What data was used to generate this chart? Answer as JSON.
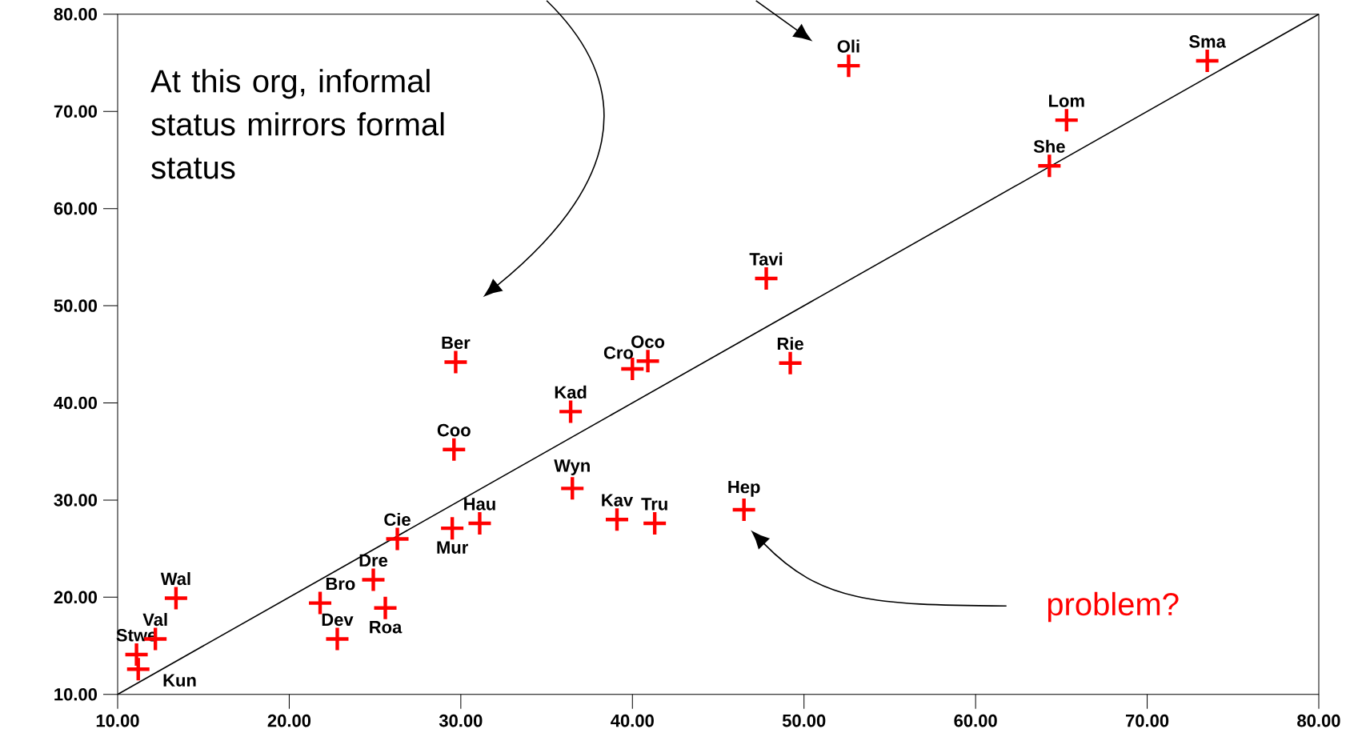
{
  "chart_data": {
    "type": "scatter",
    "xlim": [
      10,
      80
    ],
    "ylim": [
      10,
      80
    ],
    "xticks": [
      {
        "value": 10,
        "label": "10.00"
      },
      {
        "value": 20,
        "label": "20.00"
      },
      {
        "value": 30,
        "label": "30.00"
      },
      {
        "value": 40,
        "label": "40.00"
      },
      {
        "value": 50,
        "label": "50.00"
      },
      {
        "value": 60,
        "label": "60.00"
      },
      {
        "value": 70,
        "label": "70.00"
      },
      {
        "value": 80,
        "label": "80.00"
      }
    ],
    "yticks": [
      {
        "value": 10,
        "label": "10.00"
      },
      {
        "value": 20,
        "label": "20.00"
      },
      {
        "value": 30,
        "label": "30.00"
      },
      {
        "value": 40,
        "label": "40.00"
      },
      {
        "value": 50,
        "label": "50.00"
      },
      {
        "value": 60,
        "label": "60.00"
      },
      {
        "value": 70,
        "label": "70.00"
      },
      {
        "value": 80,
        "label": "80.00"
      }
    ],
    "grid": false,
    "series": [
      {
        "marker": "cross",
        "color": "#ff0000",
        "x": [
          11.1,
          11.2,
          12.2,
          13.4,
          21.8,
          22.8,
          24.9,
          25.6,
          26.3,
          29.5,
          31.1,
          29.7,
          29.6,
          36.4,
          36.5,
          39.1,
          41.3,
          40.0,
          40.9,
          46.5,
          47.8,
          49.2,
          52.6,
          64.3,
          65.3,
          73.5
        ],
        "values": [
          14.1,
          12.6,
          15.7,
          19.9,
          19.4,
          15.7,
          21.8,
          18.9,
          26.0,
          27.1,
          27.6,
          44.2,
          35.2,
          39.1,
          31.2,
          28.0,
          27.6,
          43.5,
          44.3,
          29.0,
          52.8,
          44.1,
          74.7,
          64.4,
          69.1,
          75.2
        ]
      },
      {
        "type": "line",
        "marker": "none",
        "line_style": "solid",
        "color": "#000000",
        "x": [
          10,
          80
        ],
        "values": [
          10,
          80
        ]
      }
    ],
    "annotations": [
      "At this org, informal status mirrors formal status",
      "problem?",
      {
        "text": "Stwe",
        "x": 11.1,
        "y": 14.1
      },
      {
        "text": "Kun",
        "x": 11.2,
        "y": 12.6
      },
      {
        "text": "Val",
        "x": 12.2,
        "y": 15.7
      },
      {
        "text": "Wal",
        "x": 13.4,
        "y": 19.9
      },
      {
        "text": "Bro",
        "x": 21.8,
        "y": 19.4
      },
      {
        "text": "Dev",
        "x": 22.8,
        "y": 15.7
      },
      {
        "text": "Dre",
        "x": 24.9,
        "y": 21.8
      },
      {
        "text": "Roa",
        "x": 25.6,
        "y": 18.9
      },
      {
        "text": "Cie",
        "x": 26.3,
        "y": 26.0
      },
      {
        "text": "Mur",
        "x": 29.5,
        "y": 27.1
      },
      {
        "text": "Hau",
        "x": 31.1,
        "y": 27.6
      },
      {
        "text": "Ber",
        "x": 29.7,
        "y": 44.2
      },
      {
        "text": "Coo",
        "x": 29.6,
        "y": 35.2
      },
      {
        "text": "Kad",
        "x": 36.4,
        "y": 39.1
      },
      {
        "text": "Wyn",
        "x": 36.5,
        "y": 31.2
      },
      {
        "text": "Kav",
        "x": 39.1,
        "y": 28.0
      },
      {
        "text": "Tru",
        "x": 41.3,
        "y": 27.6
      },
      {
        "text": "Cro",
        "x": 40.0,
        "y": 43.5
      },
      {
        "text": "Oco",
        "x": 40.9,
        "y": 44.3
      },
      {
        "text": "Hep",
        "x": 46.5,
        "y": 29.0
      },
      {
        "text": "Tavi",
        "x": 47.8,
        "y": 52.8
      },
      {
        "text": "Rie",
        "x": 49.2,
        "y": 44.1
      },
      {
        "text": "Oli",
        "x": 52.6,
        "y": 74.7
      },
      {
        "text": "She",
        "x": 64.3,
        "y": 64.4
      },
      {
        "text": "Lom",
        "x": 65.3,
        "y": 69.1
      },
      {
        "text": "Sma",
        "x": 73.5,
        "y": 75.2
      }
    ]
  }
}
